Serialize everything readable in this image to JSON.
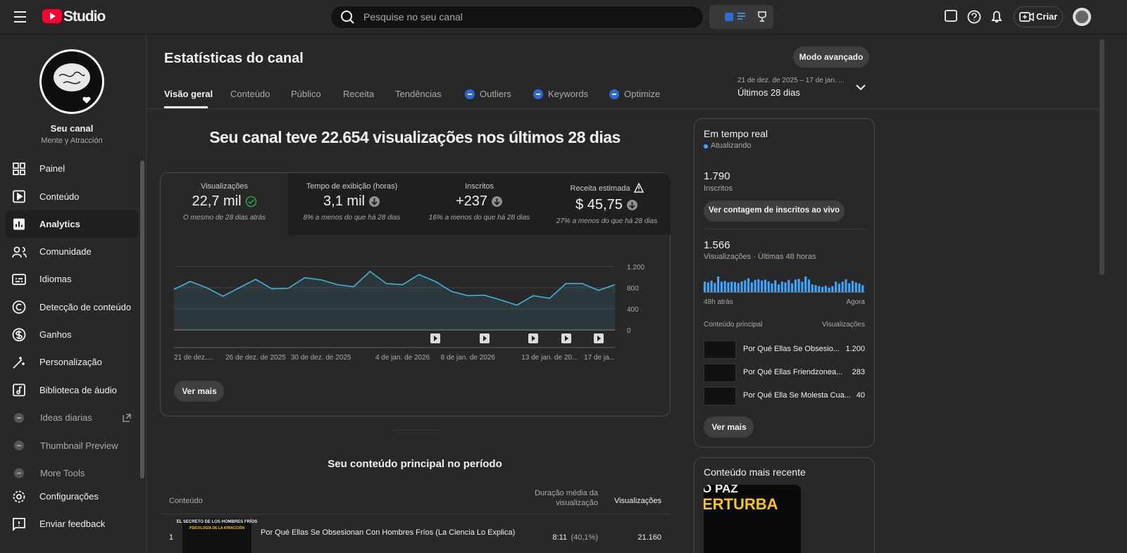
{
  "header": {
    "brand": "Studio",
    "search_placeholder": "Pesquise no seu canal",
    "create_button": "Criar"
  },
  "sidebar": {
    "channel_name": "Seu canal",
    "channel_handle": "Mente y Atracción",
    "nav": [
      "Painel",
      "Conteúdo",
      "Analytics",
      "Comunidade",
      "Idiomas",
      "Detecção de conteúdo",
      "Ganhos",
      "Personalização",
      "Biblioteca de áudio"
    ],
    "extensions": [
      "Ideas diarias",
      "Thumbnail Preview",
      "More Tools"
    ],
    "footer": [
      "Configurações",
      "Enviar feedback"
    ]
  },
  "page": {
    "title": "Estatísticas do canal",
    "advanced_mode": "Modo avançado",
    "tabs": [
      "Visão geral",
      "Conteúdo",
      "Público",
      "Receita",
      "Tendências"
    ],
    "extension_tabs": [
      "Outliers",
      "Keywords",
      "Optimize"
    ],
    "date_range": "21 de dez. de 2025 – 17 de jan. ...",
    "period": "Últimos 28 dias"
  },
  "overview": {
    "headline": "Seu canal teve 22.654 visualizações nos últimos 28 dias",
    "metrics": [
      {
        "label": "Visualizações",
        "value": "22,7 mil",
        "note": "O mesmo de 28 dias atrás"
      },
      {
        "label": "Tempo de exibição (horas)",
        "value": "3,1 mil",
        "note": "8% a menos do que há 28 dias"
      },
      {
        "label": "Inscritos",
        "value": "+237",
        "note": "16% a menos do que há 28 dias"
      },
      {
        "label": "Receita estimada",
        "value": "$ 45,75",
        "note": "27% a menos do que há 28 dias"
      }
    ],
    "see_more": "Ver mais"
  },
  "top_content": {
    "title": "Seu conteúdo principal no período",
    "columns": [
      "Conteúdo",
      "Duração média da visualização",
      "Visualizações"
    ],
    "rows": [
      {
        "rank": "1",
        "thumbnail_text": [
          "EL SECRETO DE LOS HOMBRES FRÍOS",
          "PSICOLOGÍA DE LA ATRACCIÓN"
        ],
        "title": "Por Qué Ellas Se Obsesionan Con Hombres Fríos (La Ciencia Lo Explica)",
        "avg_duration": "8:11",
        "avg_percent": "(40,1%)",
        "views": "21.160"
      }
    ]
  },
  "realtime": {
    "title": "Em tempo real",
    "status": "Atualizando",
    "subscribers": "1.790",
    "subscribers_label": "Inscritos",
    "live_count_button": "Ver contagem de inscritos ao vivo",
    "views": "1.566",
    "views_label": "Visualizações · Últimas 48 horas",
    "axis_start": "48h atrás",
    "axis_end": "Agora",
    "top_header": "Conteúdo principal",
    "top_metric": "Visualizações",
    "items": [
      {
        "title": "Por Qué Ellas Se Obsesio...",
        "views": "1.200"
      },
      {
        "title": "Por Qué Ellas Friendzonea...",
        "views": "283"
      },
      {
        "title": "Por Qué Ella Se Molesta Cua...",
        "views": "40"
      }
    ],
    "see_more": "Ver mais"
  },
  "latest": {
    "title": "Conteúdo mais recente",
    "thumbnail_text": [
      "O PAZ",
      "ERTURBA"
    ]
  },
  "chart_data": [
    {
      "type": "line",
      "color": "#41b4d9",
      "categories": [
        "21 de dez....",
        null,
        null,
        null,
        null,
        "26 de dez. de 2025",
        null,
        null,
        null,
        "30 de dez. de 2025",
        null,
        null,
        null,
        null,
        "4 de jan. de 2026",
        null,
        null,
        null,
        "8 de jan. de 2026",
        null,
        null,
        null,
        null,
        "13 de jan. de 20...",
        null,
        null,
        null,
        "17 de ja..."
      ],
      "values": [
        770,
        920,
        800,
        640,
        800,
        960,
        780,
        790,
        990,
        950,
        860,
        820,
        1110,
        880,
        860,
        1050,
        920,
        730,
        650,
        660,
        570,
        470,
        650,
        600,
        880,
        880,
        750,
        860
      ],
      "ylim": [
        0,
        1200
      ],
      "yticks": [
        0,
        400,
        800,
        {
          "value": 1200,
          "label": "1.200"
        }
      ],
      "grid": true
    },
    {
      "type": "bar",
      "color": "#3ea6ff",
      "values": [
        30,
        28,
        33,
        26,
        45,
        30,
        32,
        28,
        30,
        29,
        26,
        31,
        34,
        40,
        28,
        35,
        37,
        33,
        36,
        31,
        25,
        34,
        22,
        30,
        28,
        35,
        25,
        36,
        38,
        30,
        45,
        36,
        22,
        20,
        17,
        15,
        18,
        13,
        17,
        30,
        24,
        30,
        37,
        25,
        32,
        28,
        25,
        20
      ]
    }
  ]
}
